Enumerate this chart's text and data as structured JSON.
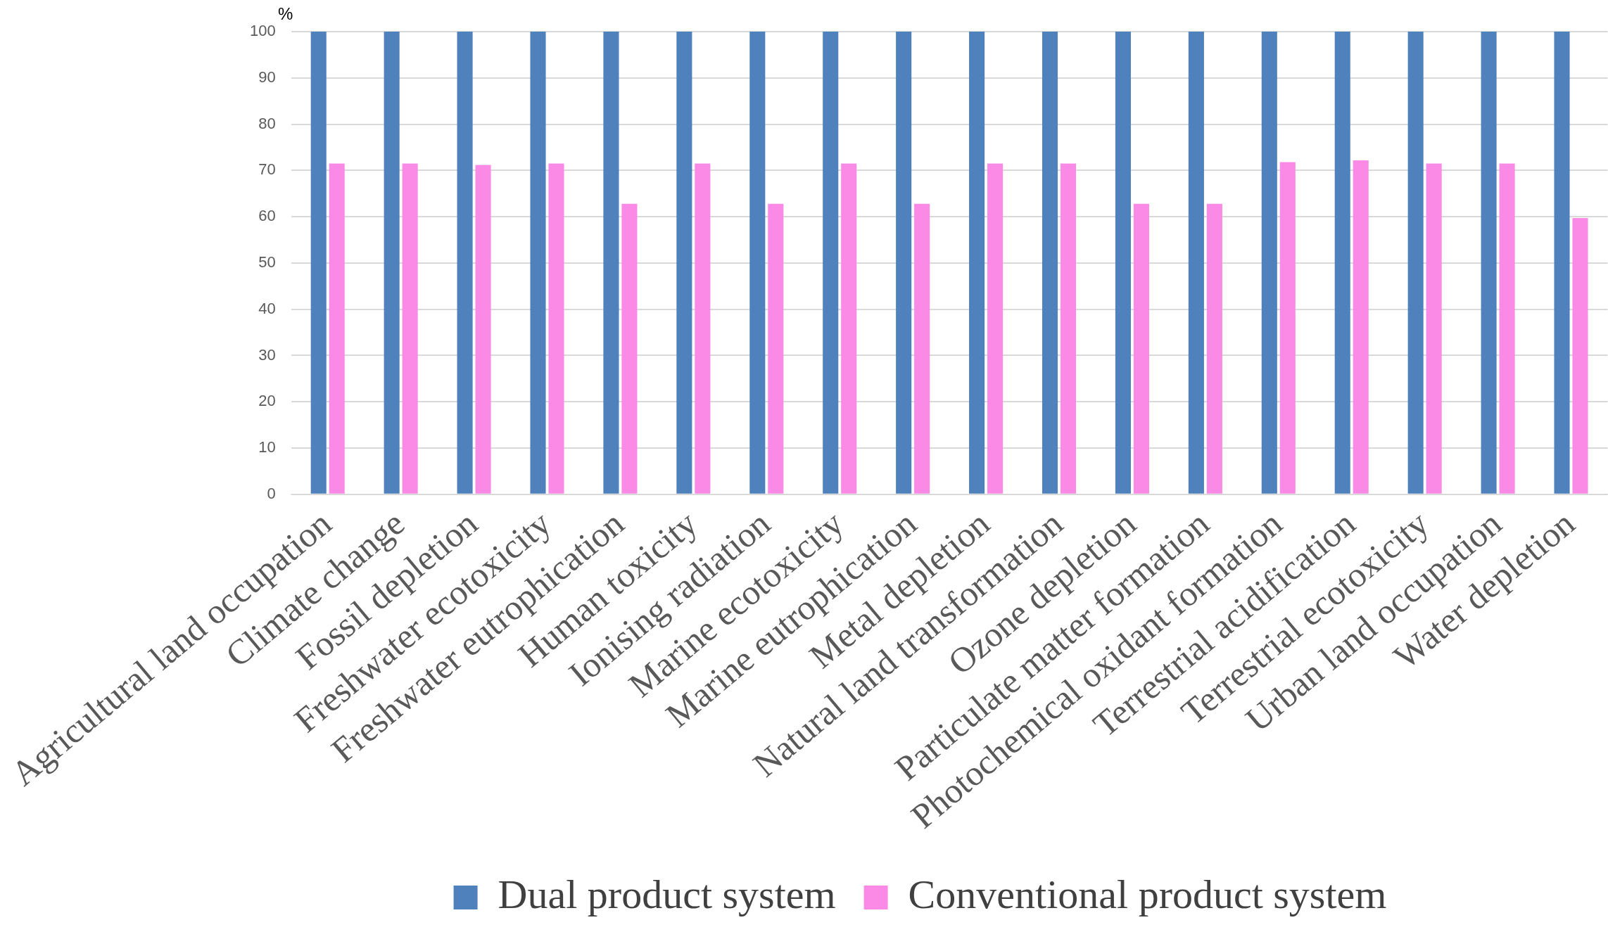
{
  "chart_data": {
    "type": "bar",
    "ylabel": "%",
    "categories": [
      "Agricultural land occupation",
      "Climate change",
      "Fossil depletion",
      "Freshwater ecotoxicity",
      "Freshwater eutrophication",
      "Human toxicity",
      "Ionising radiation",
      "Marine ecotoxicity",
      "Marine eutrophication",
      "Metal depletion",
      "Natural land transformation",
      "Ozone depletion",
      "Particulate matter formation",
      "Photochemical oxidant formation",
      "Terrestrial acidification",
      "Terrestrial ecotoxicity",
      "Urban land occupation",
      "Water depletion"
    ],
    "series": [
      {
        "name": "Dual product system",
        "color": "#4f81bd",
        "values": [
          100,
          100,
          100,
          100,
          100,
          100,
          100,
          100,
          100,
          100,
          100,
          100,
          100,
          100,
          100,
          100,
          100,
          100
        ]
      },
      {
        "name": "Conventional product system",
        "color": "#fa8ae6",
        "values": [
          71.5,
          71.5,
          71.2,
          71.5,
          62.8,
          71.5,
          62.8,
          71.5,
          62.8,
          71.5,
          71.5,
          62.8,
          62.8,
          71.8,
          72.2,
          71.5,
          71.5,
          59.7
        ]
      }
    ],
    "ylim": [
      0,
      100
    ],
    "yticks": [
      0,
      10,
      20,
      30,
      40,
      50,
      60,
      70,
      80,
      90,
      100
    ],
    "grid": "y",
    "legend": "bottom"
  }
}
